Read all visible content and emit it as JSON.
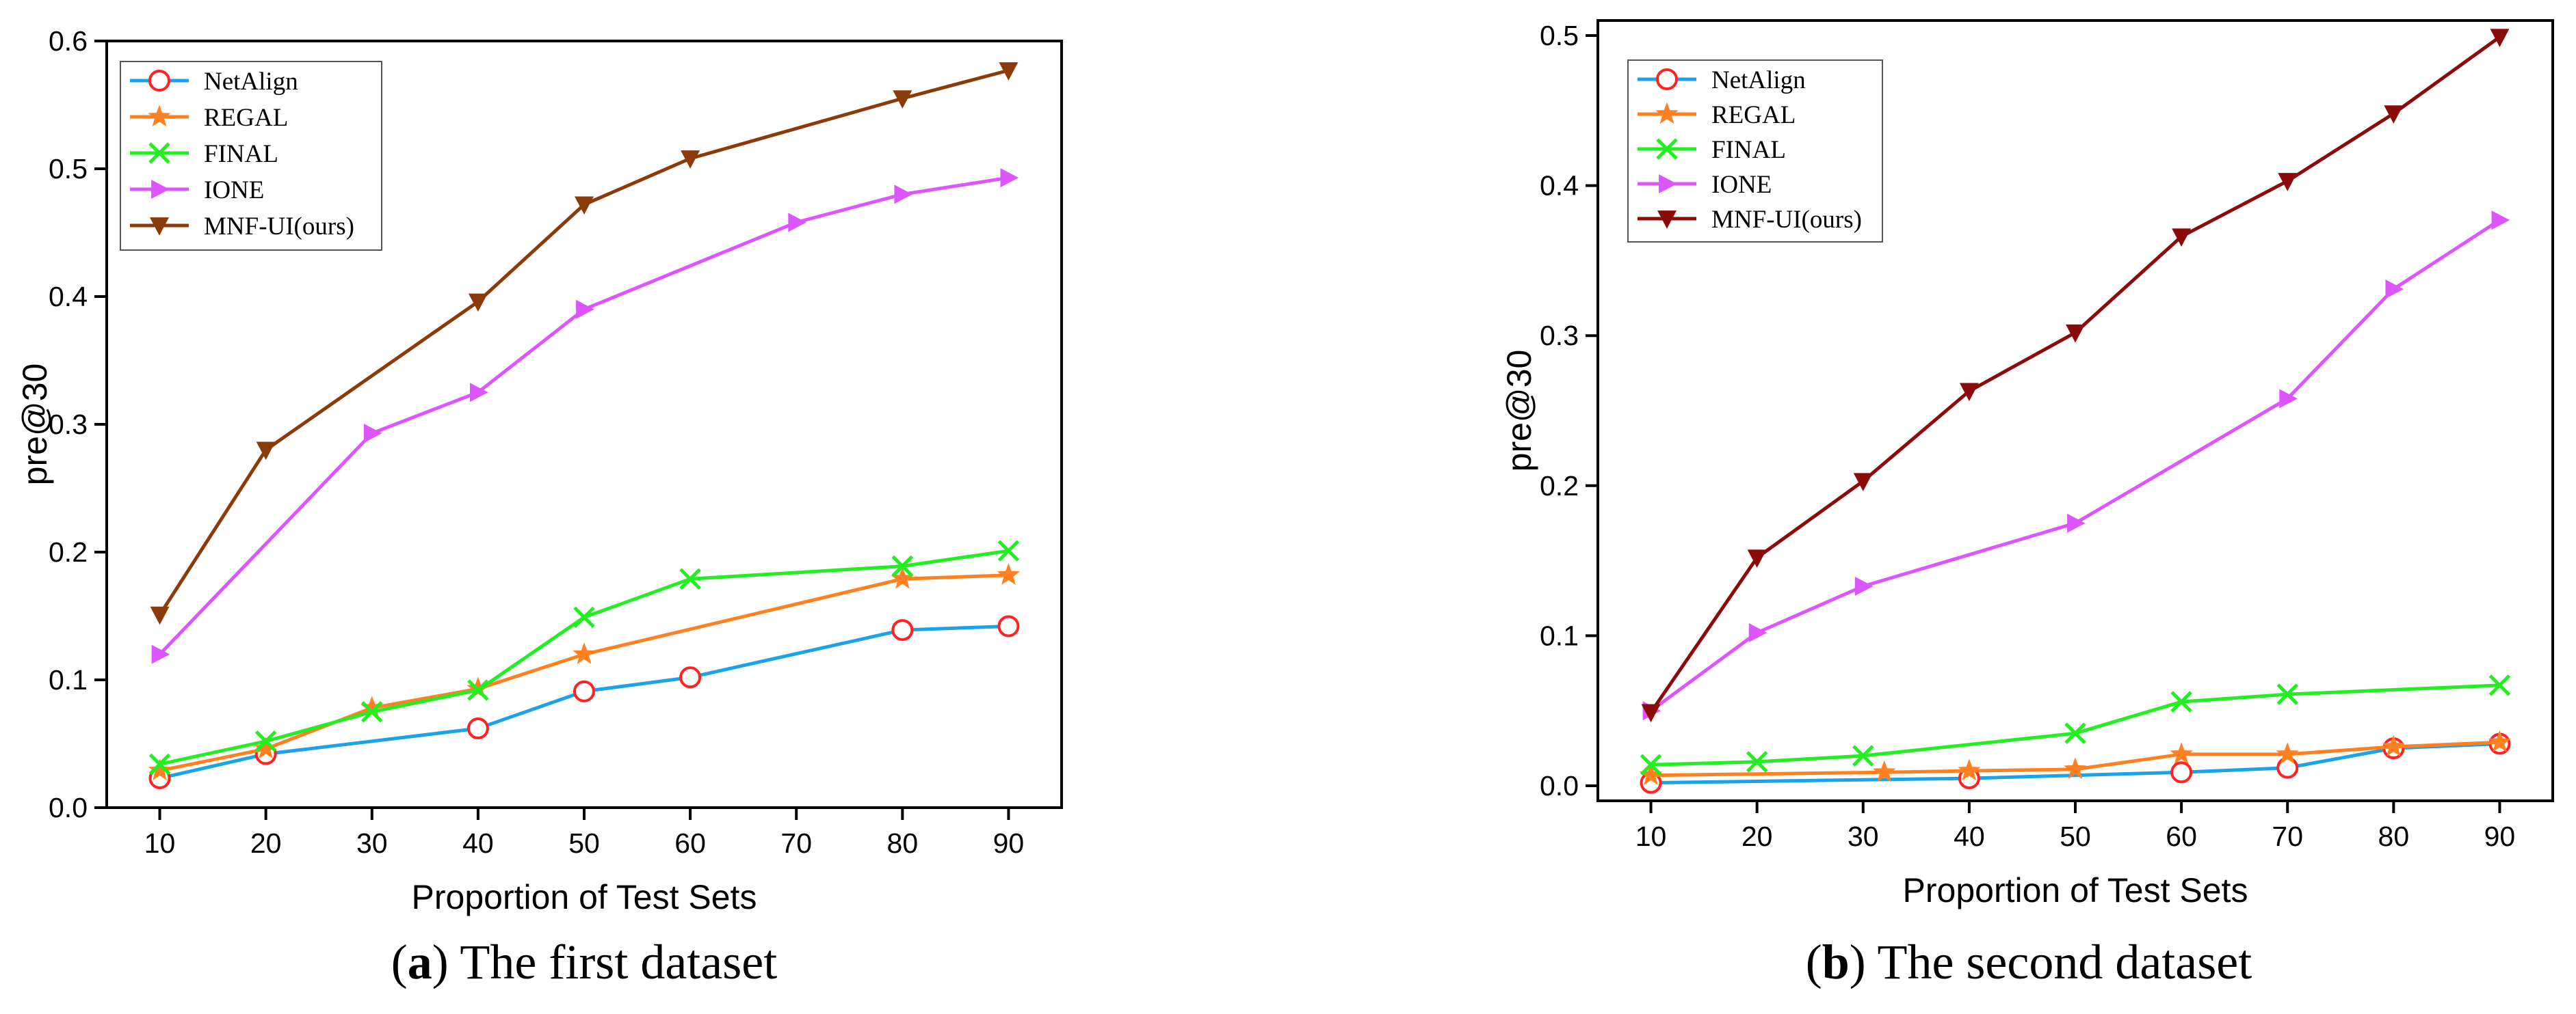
{
  "chart_data": [
    {
      "type": "line",
      "caption_letter": "a",
      "caption_open": "(",
      "caption_rest": ") The first dataset",
      "xlabel": "Proportion of Test Sets",
      "ylabel": "pre@30",
      "xlim": [
        5,
        95
      ],
      "ylim": [
        0,
        0.6
      ],
      "x_ticks": [
        10,
        20,
        30,
        40,
        50,
        60,
        70,
        80,
        90
      ],
      "y_ticks": [
        0.0,
        0.1,
        0.2,
        0.3,
        0.4,
        0.5,
        0.6
      ],
      "y_tick_labels": [
        "0.0",
        "0.1",
        "0.2",
        "0.3",
        "0.4",
        "0.5",
        "0.6"
      ],
      "legend": "top-left",
      "series": [
        {
          "name": "NetAlign",
          "color": "#1aa3e8",
          "marker": "circle",
          "marker_color": "#ff2222",
          "x": [
            10,
            20,
            40,
            50,
            60,
            80,
            90
          ],
          "y": [
            0.023,
            0.042,
            0.062,
            0.091,
            0.102,
            0.139,
            0.142
          ]
        },
        {
          "name": "REGAL",
          "color": "#ff8020",
          "marker": "star",
          "marker_color": "#ff8020",
          "x": [
            10,
            20,
            30,
            40,
            50,
            80,
            90
          ],
          "y": [
            0.029,
            0.046,
            0.078,
            0.093,
            0.12,
            0.179,
            0.182
          ]
        },
        {
          "name": "FINAL",
          "color": "#22ee22",
          "marker": "x",
          "marker_color": "#22ee22",
          "x": [
            10,
            20,
            30,
            40,
            50,
            60,
            80,
            90
          ],
          "y": [
            0.034,
            0.052,
            0.075,
            0.092,
            0.149,
            0.179,
            0.189,
            0.201
          ]
        },
        {
          "name": "IONE",
          "color": "#dd55ff",
          "marker": "triangle-right",
          "marker_color": "#dd55ff",
          "x": [
            10,
            30,
            40,
            50,
            70,
            80,
            90
          ],
          "y": [
            0.12,
            0.293,
            0.325,
            0.39,
            0.458,
            0.48,
            0.493
          ]
        },
        {
          "name": "MNF-UI(ours)",
          "color": "#8b3a0a",
          "marker": "triangle-down",
          "marker_color": "#8b3a0a",
          "x": [
            10,
            20,
            40,
            50,
            60,
            80,
            90
          ],
          "y": [
            0.151,
            0.28,
            0.396,
            0.472,
            0.508,
            0.555,
            0.577
          ]
        }
      ]
    },
    {
      "type": "line",
      "caption_letter": "b",
      "caption_open": "(",
      "caption_rest": ") The second dataset",
      "xlabel": "Proportion of Test Sets",
      "ylabel": "pre@30",
      "xlim": [
        5,
        95
      ],
      "ylim": [
        -0.01,
        0.51
      ],
      "x_ticks": [
        10,
        20,
        30,
        40,
        50,
        60,
        70,
        80,
        90
      ],
      "y_ticks": [
        0.0,
        0.1,
        0.2,
        0.3,
        0.4,
        0.5
      ],
      "y_tick_labels": [
        "0.0",
        "0.1",
        "0.2",
        "0.3",
        "0.4",
        "0.5"
      ],
      "legend": "top-left",
      "series": [
        {
          "name": "NetAlign",
          "color": "#1aa3e8",
          "marker": "circle",
          "marker_color": "#ff2222",
          "x": [
            10,
            40,
            60,
            70,
            80,
            90
          ],
          "y": [
            0.002,
            0.005,
            0.009,
            0.012,
            0.025,
            0.028
          ]
        },
        {
          "name": "REGAL",
          "color": "#ff8020",
          "marker": "star",
          "marker_color": "#ff8020",
          "x": [
            10,
            32,
            40,
            50,
            60,
            70,
            80,
            90
          ],
          "y": [
            0.007,
            0.009,
            0.01,
            0.011,
            0.021,
            0.021,
            0.026,
            0.029
          ]
        },
        {
          "name": "FINAL",
          "color": "#22ee22",
          "marker": "x",
          "marker_color": "#22ee22",
          "x": [
            10,
            20,
            30,
            50,
            60,
            70,
            90
          ],
          "y": [
            0.014,
            0.016,
            0.02,
            0.035,
            0.056,
            0.061,
            0.067
          ]
        },
        {
          "name": "IONE",
          "color": "#dd55ff",
          "marker": "triangle-right",
          "marker_color": "#dd55ff",
          "x": [
            10,
            20,
            30,
            50,
            70,
            80,
            90
          ],
          "y": [
            0.05,
            0.102,
            0.133,
            0.175,
            0.258,
            0.331,
            0.377
          ]
        },
        {
          "name": "MNF-UI(ours)",
          "color": "#8b0a0a",
          "marker": "triangle-down",
          "marker_color": "#8b0a0a",
          "x": [
            10,
            20,
            30,
            40,
            50,
            60,
            70,
            80,
            90
          ],
          "y": [
            0.049,
            0.152,
            0.203,
            0.263,
            0.302,
            0.366,
            0.403,
            0.448,
            0.499
          ]
        }
      ]
    }
  ]
}
